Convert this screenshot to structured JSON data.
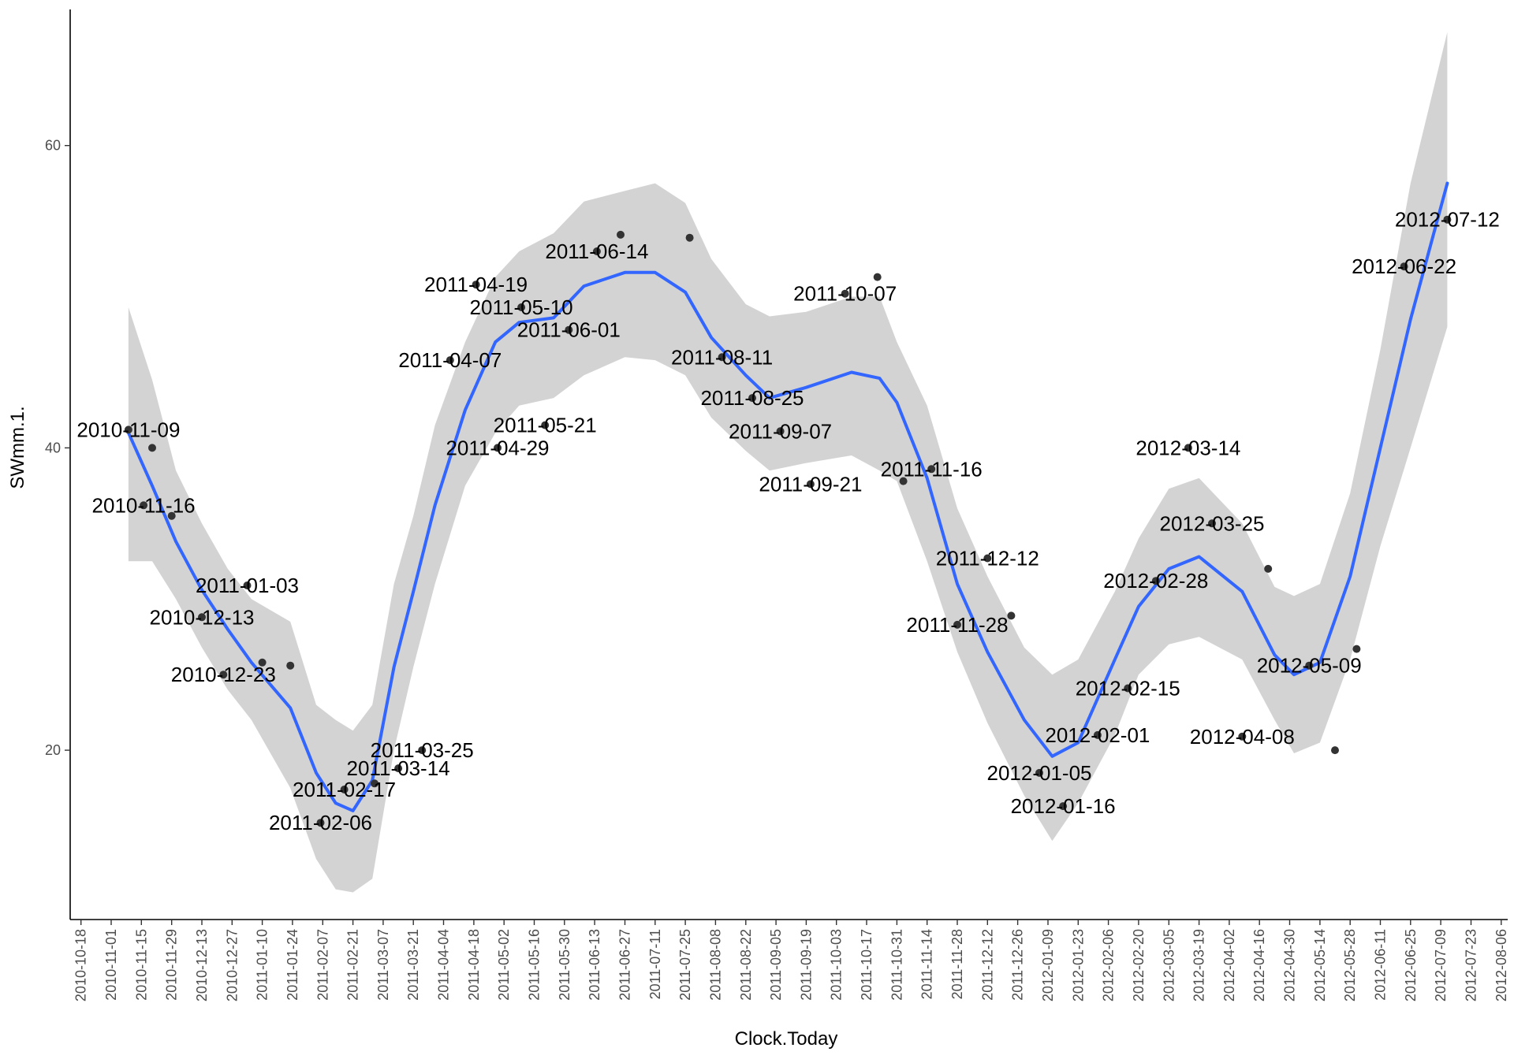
{
  "chart_data": {
    "type": "scatter",
    "xlabel": "Clock.Today",
    "ylabel": "SWmm.1.",
    "x_range": [
      "2010-10-13",
      "2012-08-09"
    ],
    "y_range": [
      8.8,
      69
    ],
    "y_ticks": [
      20,
      40,
      60
    ],
    "x_ticks": [
      "2010-10-18",
      "2010-11-01",
      "2010-11-15",
      "2010-11-29",
      "2010-12-13",
      "2010-12-27",
      "2011-01-10",
      "2011-01-24",
      "2011-02-07",
      "2011-02-21",
      "2011-03-07",
      "2011-03-21",
      "2011-04-04",
      "2011-04-18",
      "2011-05-02",
      "2011-05-16",
      "2011-05-30",
      "2011-06-13",
      "2011-06-27",
      "2011-07-11",
      "2011-07-25",
      "2011-08-08",
      "2011-08-22",
      "2011-09-05",
      "2011-09-19",
      "2011-10-03",
      "2011-10-17",
      "2011-10-31",
      "2011-11-14",
      "2011-11-28",
      "2011-12-12",
      "2011-12-26",
      "2012-01-09",
      "2012-01-23",
      "2012-02-06",
      "2012-02-20",
      "2012-03-05",
      "2012-03-19",
      "2012-04-02",
      "2012-04-16",
      "2012-04-30",
      "2012-05-14",
      "2012-05-28",
      "2012-06-11",
      "2012-06-25",
      "2012-07-09",
      "2012-07-23",
      "2012-08-06"
    ],
    "grid": false,
    "legend": "none",
    "colors": {
      "smooth_line": "#3366FF",
      "ribbon": "#D3D3D3",
      "points": "#333333"
    },
    "points": [
      {
        "x": "2010-11-09",
        "y": 41.2,
        "label": "2010-11-09"
      },
      {
        "x": "2010-11-16",
        "y": 36.2,
        "label": "2010-11-16"
      },
      {
        "x": "2010-11-20",
        "y": 40.0,
        "label": ""
      },
      {
        "x": "2010-11-29",
        "y": 35.5,
        "label": ""
      },
      {
        "x": "2010-12-13",
        "y": 28.8,
        "label": "2010-12-13"
      },
      {
        "x": "2010-12-23",
        "y": 25.0,
        "label": "2010-12-23"
      },
      {
        "x": "2011-01-03",
        "y": 30.9,
        "label": "2011-01-03"
      },
      {
        "x": "2011-01-10",
        "y": 25.8,
        "label": ""
      },
      {
        "x": "2011-01-23",
        "y": 25.6,
        "label": ""
      },
      {
        "x": "2011-02-06",
        "y": 15.2,
        "label": "2011-02-06"
      },
      {
        "x": "2011-02-17",
        "y": 17.4,
        "label": "2011-02-17"
      },
      {
        "x": "2011-03-03",
        "y": 17.8,
        "label": ""
      },
      {
        "x": "2011-03-14",
        "y": 18.8,
        "label": "2011-03-14"
      },
      {
        "x": "2011-03-25",
        "y": 20.0,
        "label": "2011-03-25"
      },
      {
        "x": "2011-04-07",
        "y": 45.8,
        "label": "2011-04-07"
      },
      {
        "x": "2011-04-19",
        "y": 50.8,
        "label": "2011-04-19"
      },
      {
        "x": "2011-04-29",
        "y": 40.0,
        "label": "2011-04-29"
      },
      {
        "x": "2011-05-10",
        "y": 49.3,
        "label": "2011-05-10"
      },
      {
        "x": "2011-05-21",
        "y": 41.5,
        "label": "2011-05-21"
      },
      {
        "x": "2011-06-01",
        "y": 47.8,
        "label": "2011-06-01"
      },
      {
        "x": "2011-06-14",
        "y": 53.0,
        "label": "2011-06-14"
      },
      {
        "x": "2011-06-25",
        "y": 54.1,
        "label": ""
      },
      {
        "x": "2011-07-27",
        "y": 53.9,
        "label": ""
      },
      {
        "x": "2011-08-11",
        "y": 46.0,
        "label": "2011-08-11"
      },
      {
        "x": "2011-08-25",
        "y": 43.3,
        "label": "2011-08-25"
      },
      {
        "x": "2011-09-07",
        "y": 41.1,
        "label": "2011-09-07"
      },
      {
        "x": "2011-09-21",
        "y": 37.6,
        "label": "2011-09-21"
      },
      {
        "x": "2011-10-07",
        "y": 50.2,
        "label": "2011-10-07"
      },
      {
        "x": "2011-10-22",
        "y": 51.3,
        "label": ""
      },
      {
        "x": "2011-11-03",
        "y": 37.8,
        "label": ""
      },
      {
        "x": "2011-11-16",
        "y": 38.6,
        "label": "2011-11-16"
      },
      {
        "x": "2011-11-28",
        "y": 28.3,
        "label": "2011-11-28"
      },
      {
        "x": "2011-12-12",
        "y": 32.7,
        "label": "2011-12-12"
      },
      {
        "x": "2011-12-23",
        "y": 28.9,
        "label": ""
      },
      {
        "x": "2012-01-05",
        "y": 18.5,
        "label": "2012-01-05"
      },
      {
        "x": "2012-01-16",
        "y": 16.3,
        "label": "2012-01-16"
      },
      {
        "x": "2012-02-01",
        "y": 21.0,
        "label": "2012-02-01"
      },
      {
        "x": "2012-02-15",
        "y": 24.1,
        "label": "2012-02-15"
      },
      {
        "x": "2012-02-28",
        "y": 31.2,
        "label": "2012-02-28"
      },
      {
        "x": "2012-03-14",
        "y": 40.0,
        "label": "2012-03-14"
      },
      {
        "x": "2012-03-25",
        "y": 35.0,
        "label": "2012-03-25"
      },
      {
        "x": "2012-04-08",
        "y": 20.9,
        "label": "2012-04-08"
      },
      {
        "x": "2012-04-20",
        "y": 32.0,
        "label": ""
      },
      {
        "x": "2012-05-09",
        "y": 25.6,
        "label": "2012-05-09"
      },
      {
        "x": "2012-05-21",
        "y": 20.0,
        "label": ""
      },
      {
        "x": "2012-05-31",
        "y": 26.7,
        "label": ""
      },
      {
        "x": "2012-06-22",
        "y": 52.0,
        "label": "2012-06-22"
      },
      {
        "x": "2012-07-12",
        "y": 55.1,
        "label": "2012-07-12"
      }
    ],
    "smooth": [
      {
        "x": "2010-11-09",
        "y": 41.0,
        "lo": 32.5,
        "hi": 49.3
      },
      {
        "x": "2010-11-20",
        "y": 37.5,
        "lo": 32.5,
        "hi": 44.5
      },
      {
        "x": "2010-12-01",
        "y": 33.8,
        "lo": 30.0,
        "hi": 38.5
      },
      {
        "x": "2010-12-13",
        "y": 30.6,
        "lo": 26.8,
        "hi": 35.0
      },
      {
        "x": "2010-12-25",
        "y": 28.0,
        "lo": 24.0,
        "hi": 32.0
      },
      {
        "x": "2011-01-05",
        "y": 25.8,
        "lo": 22.0,
        "hi": 30.0
      },
      {
        "x": "2011-01-23",
        "y": 22.8,
        "lo": 17.5,
        "hi": 28.5
      },
      {
        "x": "2011-02-04",
        "y": 18.5,
        "lo": 12.8,
        "hi": 23.0
      },
      {
        "x": "2011-02-13",
        "y": 16.5,
        "lo": 10.8,
        "hi": 22.0
      },
      {
        "x": "2011-02-21",
        "y": 16.0,
        "lo": 10.6,
        "hi": 21.3
      },
      {
        "x": "2011-03-02",
        "y": 18.0,
        "lo": 11.5,
        "hi": 23.0
      },
      {
        "x": "2011-03-12",
        "y": 25.5,
        "lo": 20.0,
        "hi": 31.0
      },
      {
        "x": "2011-03-21",
        "y": 30.5,
        "lo": 25.5,
        "hi": 35.5
      },
      {
        "x": "2011-03-31",
        "y": 36.2,
        "lo": 31.0,
        "hi": 41.5
      },
      {
        "x": "2011-04-14",
        "y": 42.5,
        "lo": 37.5,
        "hi": 47.0
      },
      {
        "x": "2011-04-28",
        "y": 47.0,
        "lo": 41.0,
        "hi": 51.3
      },
      {
        "x": "2011-05-09",
        "y": 48.3,
        "lo": 42.8,
        "hi": 53.0
      },
      {
        "x": "2011-05-25",
        "y": 48.6,
        "lo": 43.3,
        "hi": 54.2
      },
      {
        "x": "2011-06-08",
        "y": 50.7,
        "lo": 44.8,
        "hi": 56.3
      },
      {
        "x": "2011-06-27",
        "y": 51.6,
        "lo": 46.0,
        "hi": 57.0
      },
      {
        "x": "2011-07-11",
        "y": 51.6,
        "lo": 45.8,
        "hi": 57.5
      },
      {
        "x": "2011-07-25",
        "y": 50.3,
        "lo": 44.8,
        "hi": 56.2
      },
      {
        "x": "2011-08-06",
        "y": 47.3,
        "lo": 42.0,
        "hi": 52.5
      },
      {
        "x": "2011-08-22",
        "y": 44.8,
        "lo": 39.8,
        "hi": 49.5
      },
      {
        "x": "2011-09-02",
        "y": 43.3,
        "lo": 38.5,
        "hi": 48.7
      },
      {
        "x": "2011-09-19",
        "y": 44.0,
        "lo": 39.0,
        "hi": 49.0
      },
      {
        "x": "2011-10-10",
        "y": 45.0,
        "lo": 39.5,
        "hi": 50.0
      },
      {
        "x": "2011-10-23",
        "y": 44.6,
        "lo": 38.5,
        "hi": 50.0
      },
      {
        "x": "2011-10-31",
        "y": 43.0,
        "lo": 37.8,
        "hi": 47.0
      },
      {
        "x": "2011-11-14",
        "y": 38.0,
        "lo": 32.5,
        "hi": 42.8
      },
      {
        "x": "2011-11-28",
        "y": 31.0,
        "lo": 26.5,
        "hi": 36.0
      },
      {
        "x": "2011-12-12",
        "y": 26.5,
        "lo": 21.8,
        "hi": 31.5
      },
      {
        "x": "2011-12-29",
        "y": 22.0,
        "lo": 17.0,
        "hi": 26.8
      },
      {
        "x": "2012-01-11",
        "y": 19.6,
        "lo": 14.0,
        "hi": 25.0
      },
      {
        "x": "2012-01-23",
        "y": 20.5,
        "lo": 16.5,
        "hi": 26.0
      },
      {
        "x": "2012-02-09",
        "y": 26.0,
        "lo": 21.0,
        "hi": 30.5
      },
      {
        "x": "2012-02-20",
        "y": 29.5,
        "lo": 25.0,
        "hi": 34.0
      },
      {
        "x": "2012-03-05",
        "y": 32.0,
        "lo": 27.0,
        "hi": 37.3
      },
      {
        "x": "2012-03-19",
        "y": 32.8,
        "lo": 27.5,
        "hi": 38.0
      },
      {
        "x": "2012-04-08",
        "y": 30.5,
        "lo": 26.0,
        "hi": 35.0
      },
      {
        "x": "2012-04-23",
        "y": 26.3,
        "lo": 22.0,
        "hi": 30.8
      },
      {
        "x": "2012-05-02",
        "y": 25.0,
        "lo": 19.8,
        "hi": 30.2
      },
      {
        "x": "2012-05-14",
        "y": 25.8,
        "lo": 20.5,
        "hi": 31.0
      },
      {
        "x": "2012-05-28",
        "y": 31.5,
        "lo": 26.0,
        "hi": 37.0
      },
      {
        "x": "2012-06-11",
        "y": 40.0,
        "lo": 33.5,
        "hi": 46.5
      },
      {
        "x": "2012-06-25",
        "y": 48.5,
        "lo": 40.0,
        "hi": 57.5
      },
      {
        "x": "2012-07-12",
        "y": 57.5,
        "lo": 48.0,
        "hi": 67.5
      }
    ]
  }
}
